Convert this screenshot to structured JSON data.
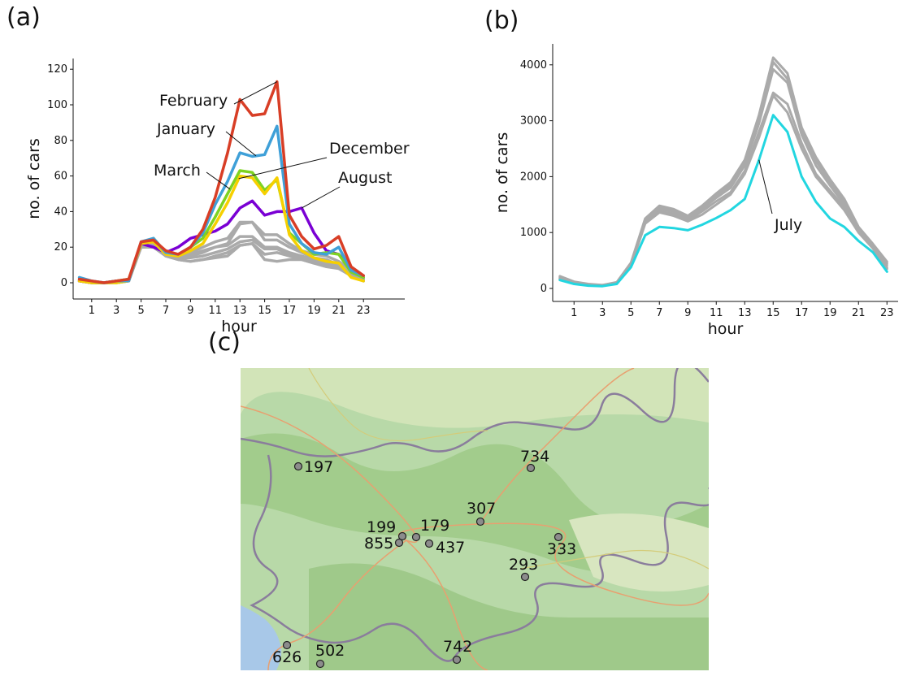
{
  "panels": {
    "a": "(a)",
    "b": "(b)",
    "c": "(c)"
  },
  "chart_data": [
    {
      "type": "line",
      "panel": "(a)",
      "xlabel": "hour",
      "ylabel": "no. of cars",
      "xticks": [
        "1",
        "3",
        "5",
        "7",
        "9",
        "11",
        "13",
        "15",
        "17",
        "19",
        "21",
        "23"
      ],
      "yticks": [
        "0",
        "20",
        "40",
        "60",
        "80",
        "100",
        "120"
      ],
      "ylim": [
        0,
        120
      ],
      "x": [
        0,
        1,
        2,
        3,
        4,
        5,
        6,
        7,
        8,
        9,
        10,
        11,
        12,
        13,
        14,
        15,
        16,
        17,
        18,
        19,
        20,
        21,
        22,
        23
      ],
      "grey_color": "#aaaaaa",
      "series": [
        {
          "color": "#aaaaaa",
          "values": [
            1,
            0,
            0,
            1,
            1,
            22,
            21,
            16,
            15,
            17,
            20,
            23,
            25,
            34,
            34,
            27,
            27,
            22,
            18,
            16,
            15,
            12,
            7,
            2
          ]
        },
        {
          "color": "#aaaaaa",
          "values": [
            2,
            1,
            0,
            0,
            1,
            21,
            22,
            17,
            15,
            16,
            18,
            20,
            22,
            33,
            34,
            24,
            24,
            20,
            17,
            14,
            13,
            10,
            5,
            2
          ]
        },
        {
          "color": "#aaaaaa",
          "values": [
            1,
            0,
            0,
            1,
            1,
            21,
            21,
            16,
            14,
            15,
            17,
            20,
            21,
            26,
            26,
            20,
            20,
            17,
            15,
            13,
            12,
            10,
            5,
            1
          ]
        },
        {
          "color": "#aaaaaa",
          "values": [
            1,
            0,
            0,
            1,
            2,
            21,
            20,
            16,
            14,
            14,
            15,
            17,
            19,
            23,
            24,
            19,
            19,
            16,
            14,
            12,
            11,
            9,
            4,
            1
          ]
        },
        {
          "color": "#aaaaaa",
          "values": [
            1,
            0,
            0,
            0,
            1,
            20,
            20,
            15,
            13,
            12,
            13,
            15,
            17,
            21,
            22,
            16,
            17,
            15,
            13,
            11,
            10,
            8,
            4,
            1
          ]
        },
        {
          "color": "#aaaaaa",
          "values": [
            1,
            0,
            0,
            0,
            1,
            20,
            21,
            15,
            13,
            12,
            13,
            14,
            15,
            21,
            22,
            13,
            12,
            13,
            13,
            11,
            9,
            8,
            4,
            1
          ]
        },
        {
          "name": "August",
          "color": "#7a00d4",
          "values": [
            1,
            0,
            0,
            1,
            1,
            22,
            20,
            17,
            20,
            25,
            27,
            29,
            33,
            42,
            46,
            38,
            40,
            40,
            42,
            28,
            18,
            16,
            8,
            3
          ]
        },
        {
          "name": "March",
          "color": "#7ed321",
          "values": [
            2,
            0,
            0,
            1,
            2,
            22,
            25,
            17,
            15,
            20,
            25,
            37,
            50,
            63,
            62,
            52,
            58,
            28,
            22,
            16,
            17,
            16,
            6,
            3
          ]
        },
        {
          "name": "December",
          "color": "#f6d000",
          "values": [
            1,
            0,
            0,
            0,
            1,
            22,
            23,
            16,
            15,
            18,
            22,
            33,
            45,
            60,
            59,
            50,
            59,
            27,
            18,
            14,
            12,
            11,
            3,
            1
          ]
        },
        {
          "name": "January",
          "color": "#3fa0d8",
          "values": [
            3,
            1,
            0,
            1,
            1,
            23,
            25,
            17,
            16,
            20,
            28,
            44,
            57,
            73,
            71,
            72,
            88,
            33,
            22,
            17,
            16,
            20,
            7,
            4
          ]
        },
        {
          "name": "February",
          "color": "#d83e26",
          "values": [
            2,
            1,
            0,
            1,
            2,
            23,
            24,
            18,
            16,
            20,
            30,
            48,
            73,
            103,
            94,
            95,
            113,
            38,
            26,
            19,
            21,
            26,
            9,
            4
          ]
        }
      ],
      "annotations": [
        {
          "text": "February",
          "series": "February",
          "x": 16
        },
        {
          "text": "January",
          "series": "January",
          "x": 14.3
        },
        {
          "text": "March",
          "series": "March",
          "x": 12.2
        },
        {
          "text": "December",
          "series": "December",
          "x": 12.9
        },
        {
          "text": "August",
          "series": "August",
          "x": 18
        }
      ]
    },
    {
      "type": "line",
      "panel": "(b)",
      "xlabel": "hour",
      "ylabel": "no. of cars",
      "xticks": [
        "1",
        "3",
        "5",
        "7",
        "9",
        "11",
        "13",
        "15",
        "17",
        "19",
        "21",
        "23"
      ],
      "yticks": [
        "0",
        "1000",
        "2000",
        "3000",
        "4000"
      ],
      "ylim": [
        0,
        4300
      ],
      "x": [
        0,
        1,
        2,
        3,
        4,
        5,
        6,
        7,
        8,
        9,
        10,
        11,
        12,
        13,
        14,
        15,
        16,
        17,
        18,
        19,
        20,
        21,
        22,
        23
      ],
      "series": [
        {
          "color": "#aaaaaa",
          "values": [
            220,
            120,
            80,
            60,
            110,
            460,
            1250,
            1480,
            1420,
            1300,
            1480,
            1700,
            1900,
            2300,
            3100,
            4130,
            3850,
            2880,
            2350,
            1950,
            1600,
            1100,
            800,
            480
          ]
        },
        {
          "color": "#aaaaaa",
          "values": [
            200,
            110,
            70,
            60,
            100,
            440,
            1230,
            1450,
            1400,
            1280,
            1450,
            1660,
            1850,
            2250,
            3050,
            4050,
            3750,
            2800,
            2280,
            1900,
            1550,
            1070,
            780,
            450
          ]
        },
        {
          "color": "#aaaaaa",
          "values": [
            180,
            100,
            70,
            50,
            100,
            420,
            1200,
            1420,
            1380,
            1260,
            1420,
            1620,
            1800,
            2200,
            2950,
            3920,
            3680,
            2750,
            2200,
            1840,
            1500,
            1050,
            760,
            420
          ]
        },
        {
          "color": "#aaaaaa",
          "values": [
            170,
            100,
            70,
            50,
            90,
            420,
            1180,
            1380,
            1340,
            1220,
            1380,
            1560,
            1720,
            2100,
            2800,
            3500,
            3300,
            2600,
            2050,
            1750,
            1450,
            1020,
            740,
            380
          ]
        },
        {
          "color": "#aaaaaa",
          "values": [
            160,
            90,
            60,
            50,
            90,
            400,
            1160,
            1360,
            1300,
            1200,
            1320,
            1500,
            1680,
            2050,
            2700,
            3450,
            3150,
            2500,
            2000,
            1700,
            1400,
            1000,
            720,
            350
          ]
        },
        {
          "name": "July",
          "color": "#22d6e0",
          "values": [
            150,
            80,
            50,
            40,
            80,
            380,
            950,
            1100,
            1080,
            1040,
            1140,
            1260,
            1400,
            1600,
            2300,
            3100,
            2800,
            2000,
            1550,
            1250,
            1100,
            850,
            650,
            300
          ]
        }
      ],
      "annotations": [
        {
          "text": "July",
          "series": "July",
          "x": 14
        }
      ]
    }
  ],
  "map": {
    "panel": "(c)",
    "points": [
      {
        "label": "197"
      },
      {
        "label": "734"
      },
      {
        "label": "307"
      },
      {
        "label": "199"
      },
      {
        "label": "179"
      },
      {
        "label": "855"
      },
      {
        "label": "437"
      },
      {
        "label": "333"
      },
      {
        "label": "293"
      },
      {
        "label": "742"
      },
      {
        "label": "626"
      },
      {
        "label": "502"
      }
    ],
    "colors": {
      "land": "#b8d9a8",
      "forest": "#a2cc8c",
      "sea": "#a8c8e8",
      "border": "#8a7d9c",
      "road": "#e8a070",
      "point_fill": "#8c8c8c"
    }
  }
}
